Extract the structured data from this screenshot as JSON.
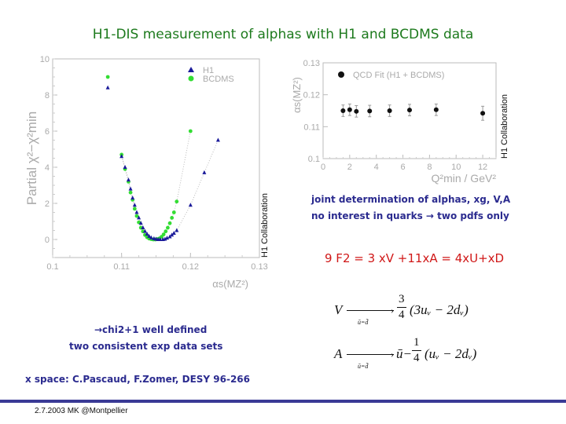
{
  "title": "H1-DIS measurement of alphas with H1 and BCDMS data",
  "notes": {
    "joint_line1": "joint determination of alphas, xg, V,A",
    "joint_line2": "no interest in quarks → two pdfs only",
    "f2_relation": "9 F2 = 3 xV +11xA = 4xU+xD",
    "chi2_line1": "→chi2+1 well defined",
    "chi2_line2": "two consistent exp data sets",
    "reference": "x space: C.Pascaud, F.Zomer, DESY 96-266"
  },
  "formulas": {
    "v_lhs": "V",
    "v_rhs_num": "3",
    "v_rhs_den": "4",
    "v_rhs_expr": "(3uᵥ − 2dᵥ)",
    "a_lhs": "A",
    "a_rhs_prefix": "ū−",
    "a_rhs_num": "1",
    "a_rhs_den": "4",
    "a_rhs_expr": "(uᵥ − 2dᵥ)",
    "condition": "ū=d̄"
  },
  "footer": {
    "text": "2.7.2003 MK @Montpellier"
  },
  "colors": {
    "title": "#1d7a1d",
    "blue_text": "#2b2b8f",
    "red_text": "#d01818",
    "h1_marker": "#1a1a9a",
    "bcdms_marker": "#33dd33",
    "footer_line": "#3a3a96"
  },
  "chart_data": [
    {
      "type": "scatter",
      "title": "",
      "xlabel": "αs(MZ²)",
      "ylabel": "Partial χ²−χ²min",
      "xlim": [
        0.1,
        0.13
      ],
      "ylim": [
        -1,
        10
      ],
      "xticks": [
        "0.1",
        "0.11",
        "0.12",
        "0.13"
      ],
      "yticks": [
        "0",
        "2",
        "4",
        "6",
        "8",
        "10"
      ],
      "grid": false,
      "legend_position": "top-right",
      "side_label": "H1 Collaboration",
      "series": [
        {
          "name": "H1",
          "marker": "triangle",
          "x": [
            0.108,
            0.11,
            0.1105,
            0.111,
            0.1113,
            0.1116,
            0.1119,
            0.1122,
            0.1125,
            0.1128,
            0.1131,
            0.1134,
            0.1137,
            0.114,
            0.1143,
            0.1147,
            0.115,
            0.1153,
            0.1156,
            0.116,
            0.1163,
            0.1166,
            0.117,
            0.1173,
            0.1176,
            0.118,
            0.12,
            0.122,
            0.124
          ],
          "y": [
            8.4,
            4.6,
            4.0,
            3.3,
            2.8,
            2.3,
            1.9,
            1.5,
            1.2,
            0.9,
            0.65,
            0.45,
            0.3,
            0.18,
            0.1,
            0.05,
            0.02,
            0.0,
            0.0,
            0.0,
            0.02,
            0.08,
            0.15,
            0.25,
            0.35,
            0.5,
            1.9,
            3.7,
            5.5
          ]
        },
        {
          "name": "BCDMS",
          "marker": "circle",
          "x": [
            0.108,
            0.11,
            0.1105,
            0.111,
            0.1113,
            0.1116,
            0.1119,
            0.1122,
            0.1125,
            0.1128,
            0.1131,
            0.1134,
            0.1137,
            0.114,
            0.1143,
            0.1146,
            0.1149,
            0.1152,
            0.1155,
            0.1158,
            0.1161,
            0.1164,
            0.1167,
            0.117,
            0.1173,
            0.1176,
            0.118,
            0.12
          ],
          "y": [
            9.0,
            4.7,
            3.9,
            3.2,
            2.6,
            2.2,
            1.7,
            1.3,
            0.95,
            0.65,
            0.45,
            0.25,
            0.12,
            0.05,
            0.02,
            0.0,
            0.0,
            0.02,
            0.06,
            0.15,
            0.28,
            0.45,
            0.65,
            0.9,
            1.2,
            1.5,
            2.1,
            6.0
          ]
        }
      ]
    },
    {
      "type": "scatter",
      "title": "",
      "xlabel": "Q²min / GeV²",
      "ylabel": "αs(MZ²)",
      "xlim": [
        0,
        13
      ],
      "ylim": [
        0.1,
        0.13
      ],
      "xticks": [
        "0",
        "2",
        "4",
        "6",
        "8",
        "10",
        "12"
      ],
      "yticks": [
        "0.1",
        "0.11",
        "0.12",
        "0.13"
      ],
      "grid": false,
      "legend_position": "top-left",
      "side_label": "H1 Collaboration",
      "series": [
        {
          "name": "QCD Fit (H1 + BCDMS)",
          "marker": "circle",
          "x": [
            1.5,
            2.0,
            2.5,
            3.5,
            5.0,
            6.5,
            8.5,
            12.0
          ],
          "y": [
            0.115,
            0.1153,
            0.1148,
            0.1149,
            0.115,
            0.1152,
            0.1153,
            0.1142
          ],
          "err": [
            0.0018,
            0.0018,
            0.0018,
            0.0018,
            0.0018,
            0.0018,
            0.0018,
            0.0022
          ]
        }
      ]
    }
  ]
}
